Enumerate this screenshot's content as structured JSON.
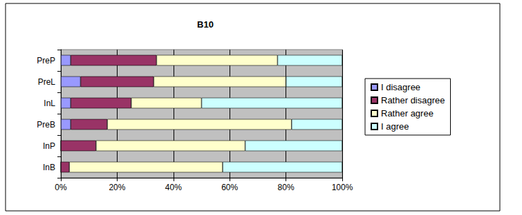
{
  "chart_data": {
    "type": "bar",
    "title": "B10",
    "orientation": "horizontal",
    "stacked": true,
    "grid": true,
    "legend": "right",
    "categories": [
      "InB",
      "InP",
      "PreB",
      "InL",
      "PreL",
      "PreP"
    ],
    "xlim": [
      0,
      100
    ],
    "xticks": [
      {
        "value": 0,
        "label": "0%"
      },
      {
        "value": 20,
        "label": "20%"
      },
      {
        "value": 40,
        "label": "40%"
      },
      {
        "value": 60,
        "label": "60%"
      },
      {
        "value": 80,
        "label": "80%"
      },
      {
        "value": 100,
        "label": "100%"
      }
    ],
    "series": [
      {
        "name": "I disagree",
        "color": "#9999ff",
        "values": [
          0,
          0,
          3.5,
          3.5,
          7,
          3.5
        ]
      },
      {
        "name": "Rather disagree",
        "color": "#993366",
        "values": [
          3,
          12.5,
          13,
          21.5,
          26,
          30.5
        ]
      },
      {
        "name": "Rather agree",
        "color": "#ffffcc",
        "values": [
          54.5,
          53,
          65.5,
          25,
          47,
          43
        ]
      },
      {
        "name": "I agree",
        "color": "#ccffff",
        "values": [
          42.5,
          34.5,
          18,
          50,
          20,
          23
        ]
      }
    ]
  }
}
